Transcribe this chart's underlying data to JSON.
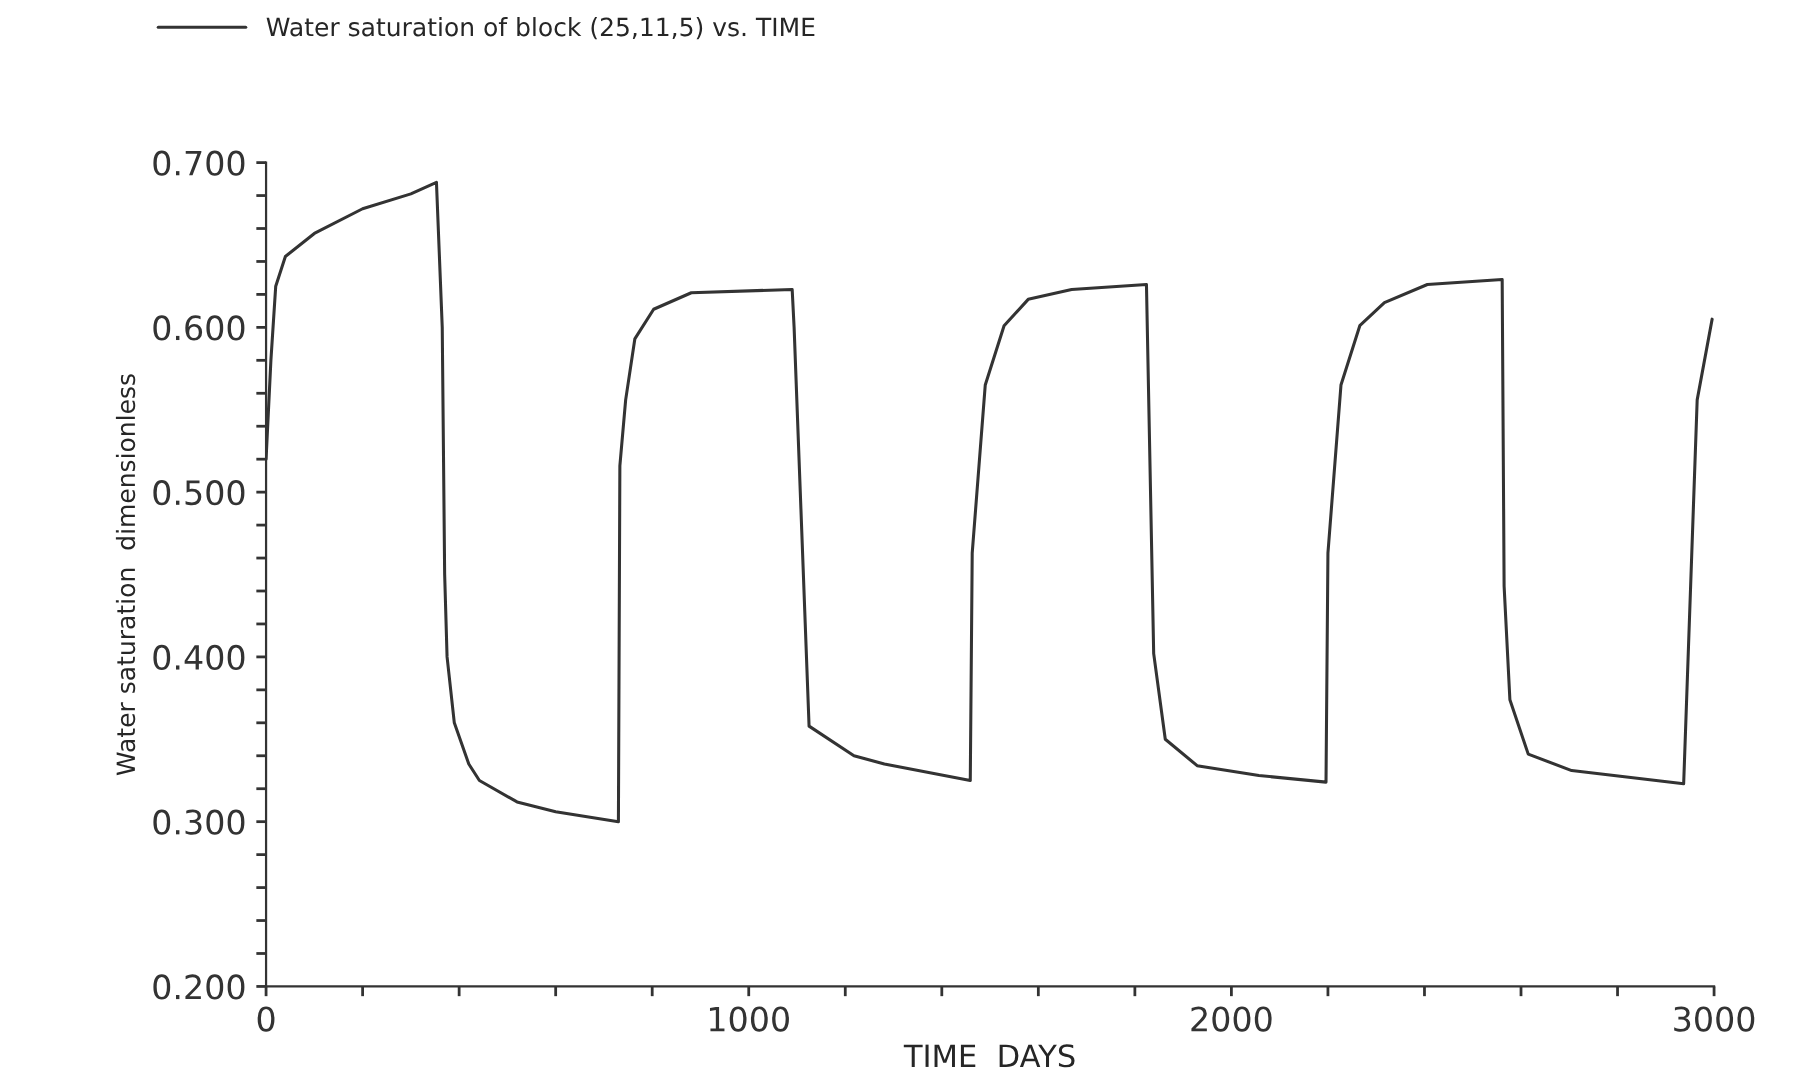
{
  "chart_data": {
    "type": "line",
    "xlabel": "TIME  DAYS",
    "ylabel": "Water saturation  dimensionless",
    "legend": "top left",
    "grid": false,
    "marker": "none",
    "line_style": "solid",
    "xlim": [
      0,
      3000
    ],
    "ylim": [
      0.2,
      0.7
    ],
    "xticks": [
      0,
      {
        "value": 200,
        "label": null
      },
      {
        "value": 400,
        "label": null
      },
      {
        "value": 600,
        "label": null
      },
      {
        "value": 800,
        "label": null
      },
      1000,
      {
        "value": 1200,
        "label": null
      },
      {
        "value": 1400,
        "label": null
      },
      {
        "value": 1600,
        "label": null
      },
      {
        "value": 1800,
        "label": null
      },
      2000,
      {
        "value": 2200,
        "label": null
      },
      {
        "value": 2400,
        "label": null
      },
      {
        "value": 2600,
        "label": null
      },
      {
        "value": 2800,
        "label": null
      },
      3000
    ],
    "yticks": [
      {
        "value": 0.2,
        "label": "0.200"
      },
      {
        "value": 0.22,
        "label": null
      },
      {
        "value": 0.24,
        "label": null
      },
      {
        "value": 0.26,
        "label": null
      },
      {
        "value": 0.28,
        "label": null
      },
      {
        "value": 0.3,
        "label": "0.300"
      },
      {
        "value": 0.32,
        "label": null
      },
      {
        "value": 0.34,
        "label": null
      },
      {
        "value": 0.36,
        "label": null
      },
      {
        "value": 0.38,
        "label": null
      },
      {
        "value": 0.4,
        "label": "0.400"
      },
      {
        "value": 0.42,
        "label": null
      },
      {
        "value": 0.44,
        "label": null
      },
      {
        "value": 0.46,
        "label": null
      },
      {
        "value": 0.48,
        "label": null
      },
      {
        "value": 0.5,
        "label": "0.500"
      },
      {
        "value": 0.52,
        "label": null
      },
      {
        "value": 0.54,
        "label": null
      },
      {
        "value": 0.56,
        "label": null
      },
      {
        "value": 0.58,
        "label": null
      },
      {
        "value": 0.6,
        "label": "0.600"
      },
      {
        "value": 0.62,
        "label": null
      },
      {
        "value": 0.64,
        "label": null
      },
      {
        "value": 0.66,
        "label": null
      },
      {
        "value": 0.68,
        "label": null
      },
      {
        "value": 0.7,
        "label": "0.700"
      }
    ],
    "series": [
      {
        "name": "Water saturation of block (25,11,5) vs. TIME",
        "color": "#333333",
        "x": [
          0,
          10,
          20,
          40,
          100,
          200,
          300,
          353,
          365,
          370,
          375,
          390,
          420,
          442,
          520,
          600,
          730,
          733,
          745,
          764,
          803,
          881,
          1090,
          1094,
          1125,
          1218,
          1281,
          1459,
          1463,
          1490,
          1529,
          1579,
          1669,
          1824,
          1839,
          1863,
          1929,
          2057,
          2196,
          2200,
          2227,
          2266,
          2317,
          2406,
          2561,
          2565,
          2577,
          2615,
          2705,
          2937,
          2965,
          2996
        ],
        "values": [
          0.52,
          0.58,
          0.625,
          0.643,
          0.657,
          0.672,
          0.681,
          0.688,
          0.6,
          0.45,
          0.4,
          0.36,
          0.335,
          0.325,
          0.312,
          0.306,
          0.3,
          0.516,
          0.556,
          0.593,
          0.611,
          0.621,
          0.623,
          0.6,
          0.358,
          0.34,
          0.335,
          0.325,
          0.463,
          0.565,
          0.601,
          0.617,
          0.623,
          0.626,
          0.402,
          0.35,
          0.334,
          0.328,
          0.324,
          0.463,
          0.565,
          0.601,
          0.615,
          0.626,
          0.629,
          0.443,
          0.374,
          0.341,
          0.331,
          0.323,
          0.556,
          0.605
        ]
      }
    ]
  }
}
